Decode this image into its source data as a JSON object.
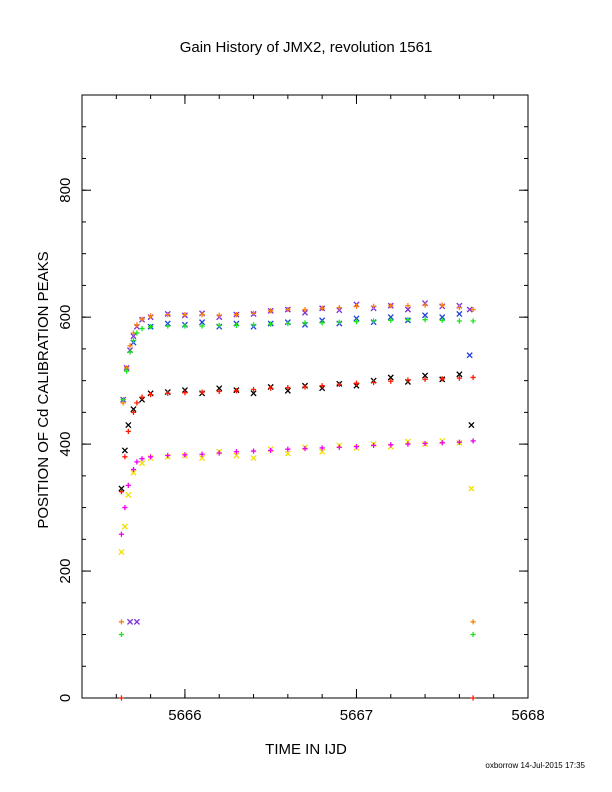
{
  "footer": "oxborrow 14-Jul-2015 17:35",
  "chart_data": {
    "type": "scatter",
    "title": "Gain History of JMX2, revolution 1561",
    "xlabel": "TIME IN IJD",
    "ylabel": "POSITION OF Cd CALIBRATION PEAKS",
    "xlim": [
      5665.4,
      5668.0
    ],
    "ylim": [
      0,
      950
    ],
    "x_ticks": [
      5666,
      5667,
      5668
    ],
    "x_tick_labels": [
      "5666",
      "5667",
      "5668"
    ],
    "y_ticks": [
      0,
      200,
      400,
      600,
      800
    ],
    "y_tick_labels": [
      "0",
      "200",
      "400",
      "600",
      "800"
    ],
    "grid": false,
    "series": [
      {
        "color": "#7b2fd6",
        "marker": "x",
        "points": [
          [
            5665.64,
            470
          ],
          [
            5665.66,
            520
          ],
          [
            5665.68,
            548
          ],
          [
            5665.7,
            570
          ],
          [
            5665.72,
            585
          ],
          [
            5665.75,
            596
          ],
          [
            5665.8,
            600
          ],
          [
            5665.9,
            605
          ],
          [
            5666.0,
            603
          ],
          [
            5666.1,
            606
          ],
          [
            5666.2,
            600
          ],
          [
            5666.3,
            604
          ],
          [
            5666.4,
            605
          ],
          [
            5666.5,
            610
          ],
          [
            5666.6,
            612
          ],
          [
            5666.7,
            607
          ],
          [
            5666.8,
            614
          ],
          [
            5666.9,
            611
          ],
          [
            5667.0,
            620
          ],
          [
            5667.1,
            614
          ],
          [
            5667.2,
            618
          ],
          [
            5667.3,
            612
          ],
          [
            5667.4,
            622
          ],
          [
            5667.5,
            617
          ],
          [
            5667.6,
            618
          ],
          [
            5667.66,
            612
          ]
        ]
      },
      {
        "color": "#1f3fe0",
        "marker": "x",
        "points": [
          [
            5665.7,
            560
          ],
          [
            5665.8,
            585
          ],
          [
            5665.9,
            590
          ],
          [
            5666.0,
            588
          ],
          [
            5666.1,
            592
          ],
          [
            5666.2,
            585
          ],
          [
            5666.3,
            590
          ],
          [
            5666.4,
            585
          ],
          [
            5666.5,
            590
          ],
          [
            5666.6,
            592
          ],
          [
            5666.7,
            588
          ],
          [
            5666.8,
            595
          ],
          [
            5666.9,
            590
          ],
          [
            5667.0,
            598
          ],
          [
            5667.1,
            592
          ],
          [
            5667.2,
            600
          ],
          [
            5667.3,
            595
          ],
          [
            5667.4,
            603
          ],
          [
            5667.5,
            600
          ],
          [
            5667.6,
            605
          ],
          [
            5667.66,
            540
          ]
        ]
      },
      {
        "color": "#ff7f0e",
        "marker": "+",
        "points": [
          [
            5665.64,
            465
          ],
          [
            5665.66,
            520
          ],
          [
            5665.68,
            555
          ],
          [
            5665.7,
            575
          ],
          [
            5665.72,
            588
          ],
          [
            5665.75,
            597
          ],
          [
            5665.8,
            602
          ],
          [
            5665.9,
            604
          ],
          [
            5666.0,
            604
          ],
          [
            5666.1,
            604
          ],
          [
            5666.2,
            603
          ],
          [
            5666.3,
            604
          ],
          [
            5666.4,
            606
          ],
          [
            5666.5,
            610
          ],
          [
            5666.6,
            612
          ],
          [
            5666.7,
            612
          ],
          [
            5666.8,
            614
          ],
          [
            5666.9,
            615
          ],
          [
            5667.0,
            617
          ],
          [
            5667.1,
            617
          ],
          [
            5667.2,
            618
          ],
          [
            5667.3,
            618
          ],
          [
            5667.4,
            619
          ],
          [
            5667.5,
            619
          ],
          [
            5667.6,
            615
          ],
          [
            5667.68,
            612
          ]
        ]
      },
      {
        "color": "#19e619",
        "marker": "+",
        "points": [
          [
            5665.64,
            470
          ],
          [
            5665.66,
            515
          ],
          [
            5665.68,
            545
          ],
          [
            5665.7,
            563
          ],
          [
            5665.72,
            575
          ],
          [
            5665.75,
            582
          ],
          [
            5665.8,
            585
          ],
          [
            5665.9,
            586
          ],
          [
            5666.0,
            586
          ],
          [
            5666.1,
            586
          ],
          [
            5666.2,
            587
          ],
          [
            5666.3,
            587
          ],
          [
            5666.4,
            588
          ],
          [
            5666.5,
            589
          ],
          [
            5666.6,
            590
          ],
          [
            5666.7,
            591
          ],
          [
            5666.8,
            591
          ],
          [
            5666.9,
            592
          ],
          [
            5667.0,
            593
          ],
          [
            5667.1,
            594
          ],
          [
            5667.2,
            595
          ],
          [
            5667.3,
            596
          ],
          [
            5667.4,
            596
          ],
          [
            5667.5,
            595
          ],
          [
            5667.6,
            594
          ],
          [
            5667.68,
            594
          ]
        ]
      },
      {
        "color": "#000000",
        "marker": "x",
        "points": [
          [
            5665.63,
            330
          ],
          [
            5665.65,
            390
          ],
          [
            5665.67,
            430
          ],
          [
            5665.7,
            455
          ],
          [
            5665.75,
            470
          ],
          [
            5665.8,
            480
          ],
          [
            5665.9,
            482
          ],
          [
            5666.0,
            485
          ],
          [
            5666.1,
            480
          ],
          [
            5666.2,
            488
          ],
          [
            5666.3,
            485
          ],
          [
            5666.4,
            480
          ],
          [
            5666.5,
            490
          ],
          [
            5666.6,
            484
          ],
          [
            5666.7,
            492
          ],
          [
            5666.8,
            488
          ],
          [
            5666.9,
            495
          ],
          [
            5667.0,
            492
          ],
          [
            5667.1,
            500
          ],
          [
            5667.2,
            505
          ],
          [
            5667.3,
            498
          ],
          [
            5667.4,
            508
          ],
          [
            5667.5,
            502
          ],
          [
            5667.6,
            510
          ],
          [
            5667.67,
            430
          ]
        ]
      },
      {
        "color": "#ff1a00",
        "marker": "+",
        "points": [
          [
            5665.63,
            325
          ],
          [
            5665.65,
            380
          ],
          [
            5665.67,
            420
          ],
          [
            5665.7,
            450
          ],
          [
            5665.72,
            465
          ],
          [
            5665.75,
            474
          ],
          [
            5665.8,
            478
          ],
          [
            5665.9,
            480
          ],
          [
            5666.0,
            481
          ],
          [
            5666.1,
            482
          ],
          [
            5666.2,
            483
          ],
          [
            5666.3,
            484
          ],
          [
            5666.4,
            486
          ],
          [
            5666.5,
            488
          ],
          [
            5666.6,
            489
          ],
          [
            5666.7,
            490
          ],
          [
            5666.8,
            492
          ],
          [
            5666.9,
            494
          ],
          [
            5667.0,
            496
          ],
          [
            5667.1,
            497
          ],
          [
            5667.2,
            499
          ],
          [
            5667.3,
            501
          ],
          [
            5667.4,
            502
          ],
          [
            5667.5,
            503
          ],
          [
            5667.6,
            504
          ],
          [
            5667.68,
            505
          ]
        ]
      },
      {
        "color": "#f0e000",
        "marker": "x",
        "points": [
          [
            5665.63,
            230
          ],
          [
            5665.65,
            270
          ],
          [
            5665.67,
            320
          ],
          [
            5665.7,
            355
          ],
          [
            5665.75,
            370
          ],
          [
            5665.8,
            378
          ],
          [
            5665.9,
            380
          ],
          [
            5666.0,
            382
          ],
          [
            5666.1,
            378
          ],
          [
            5666.2,
            388
          ],
          [
            5666.3,
            382
          ],
          [
            5666.4,
            378
          ],
          [
            5666.5,
            392
          ],
          [
            5666.6,
            385
          ],
          [
            5666.7,
            395
          ],
          [
            5666.8,
            388
          ],
          [
            5666.9,
            398
          ],
          [
            5667.0,
            394
          ],
          [
            5667.1,
            400
          ],
          [
            5667.2,
            396
          ],
          [
            5667.3,
            404
          ],
          [
            5667.4,
            400
          ],
          [
            5667.5,
            405
          ],
          [
            5667.6,
            402
          ],
          [
            5667.67,
            330
          ]
        ]
      },
      {
        "color": "#f000f0",
        "marker": "+",
        "points": [
          [
            5665.63,
            258
          ],
          [
            5665.65,
            300
          ],
          [
            5665.67,
            335
          ],
          [
            5665.7,
            360
          ],
          [
            5665.72,
            372
          ],
          [
            5665.75,
            377
          ],
          [
            5665.8,
            380
          ],
          [
            5665.9,
            382
          ],
          [
            5666.0,
            383
          ],
          [
            5666.1,
            384
          ],
          [
            5666.2,
            386
          ],
          [
            5666.3,
            388
          ],
          [
            5666.4,
            389
          ],
          [
            5666.5,
            390
          ],
          [
            5666.6,
            392
          ],
          [
            5666.7,
            393
          ],
          [
            5666.8,
            394
          ],
          [
            5666.9,
            395
          ],
          [
            5667.0,
            396
          ],
          [
            5667.1,
            398
          ],
          [
            5667.2,
            399
          ],
          [
            5667.3,
            400
          ],
          [
            5667.4,
            401
          ],
          [
            5667.5,
            402
          ],
          [
            5667.6,
            403
          ],
          [
            5667.68,
            405
          ]
        ]
      },
      {
        "color": "#ff7f0e",
        "marker": "+",
        "points": [
          [
            5665.63,
            120
          ],
          [
            5667.68,
            120
          ]
        ]
      },
      {
        "color": "#19e619",
        "marker": "+",
        "points": [
          [
            5665.63,
            100
          ],
          [
            5667.68,
            100
          ]
        ]
      },
      {
        "color": "#7b2fd6",
        "marker": "x",
        "points": [
          [
            5665.68,
            120
          ],
          [
            5665.72,
            120
          ]
        ]
      },
      {
        "color": "#ff1a00",
        "marker": "+",
        "points": [
          [
            5665.63,
            0
          ],
          [
            5667.68,
            0
          ]
        ]
      }
    ]
  }
}
